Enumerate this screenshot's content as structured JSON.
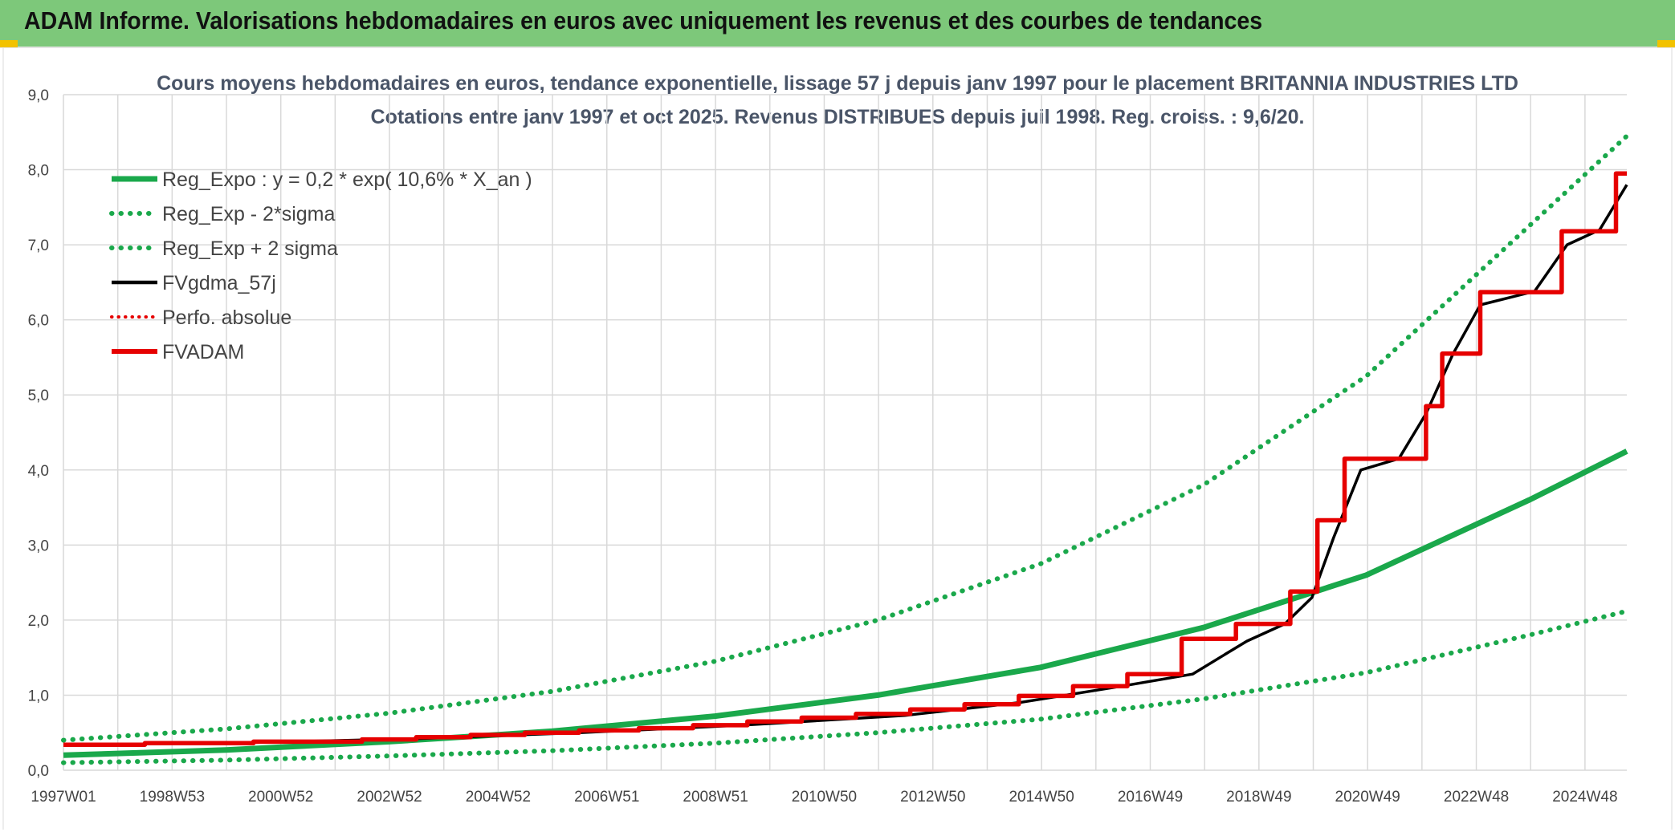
{
  "header": {
    "title": "ADAM Informe. Valorisations hebdomadaires en euros avec uniquement les revenus et des courbes de tendances"
  },
  "colors": {
    "header_bg": "#7dc87a",
    "accent_yellow": "#f2c200",
    "green": "#1aa84b",
    "red": "#e60000",
    "black": "#000000",
    "grid": "#d9d9d9"
  },
  "chart_data": {
    "type": "line",
    "title_line1": "Cours moyens hebdomadaires en euros, tendance exponentielle, lissage 57 j depuis janv 1997 pour le placement BRITANNIA INDUSTRIES LTD",
    "title_line2": "Cotations entre janv 1997 et oct 2025. Revenus DISTRIBUES depuis juil 1998. Reg. croiss. : 9,6/20.",
    "x_range": [
      1997.0,
      2025.8
    ],
    "ylim": [
      0,
      9
    ],
    "y_ticks": [
      "0,0",
      "1,0",
      "2,0",
      "3,0",
      "4,0",
      "5,0",
      "6,0",
      "7,0",
      "8,0",
      "9,0"
    ],
    "x_tick_labels": [
      "1997W01",
      "1998W53",
      "2000W52",
      "2002W52",
      "2004W52",
      "2006W51",
      "2008W51",
      "2010W50",
      "2012W50",
      "2014W50",
      "2016W49",
      "2018W49",
      "2020W49",
      "2022W48",
      "2024W48"
    ],
    "grid": true,
    "legend_position": "top-left",
    "legend": [
      {
        "label": "Reg_Expo : y = 0,2 * exp( 10,6% *  X_an )",
        "color": "#1aa84b",
        "style": "solid"
      },
      {
        "label": "Reg_Exp - 2*sigma",
        "color": "#1aa84b",
        "style": "dotted"
      },
      {
        "label": "Reg_Exp + 2 sigma",
        "color": "#1aa84b",
        "style": "dotted"
      },
      {
        "label": "FVgdma_57j",
        "color": "#000000",
        "style": "solid"
      },
      {
        "label": "Perfo. absolue",
        "color": "#e60000",
        "style": "dotted"
      },
      {
        "label": "FVADAM",
        "color": "#e60000",
        "style": "solid"
      }
    ],
    "series": [
      {
        "name": "Reg_Expo : y = 0,2 * exp( 10,6% *  X_an )",
        "x": [
          1997.0,
          2000.0,
          2003.0,
          2006.0,
          2009.0,
          2012.0,
          2015.0,
          2018.0,
          2021.0,
          2024.0,
          2025.8
        ],
        "values": [
          0.2,
          0.27,
          0.38,
          0.52,
          0.72,
          1.0,
          1.37,
          1.9,
          2.6,
          3.6,
          4.25
        ]
      },
      {
        "name": "Reg_Exp - 2*sigma",
        "x": [
          1997.0,
          2000.0,
          2003.0,
          2006.0,
          2009.0,
          2012.0,
          2015.0,
          2018.0,
          2021.0,
          2024.0,
          2025.8
        ],
        "values": [
          0.1,
          0.135,
          0.19,
          0.26,
          0.36,
          0.5,
          0.68,
          0.95,
          1.3,
          1.8,
          2.12
        ]
      },
      {
        "name": "Reg_Exp + 2 sigma",
        "x": [
          1997.0,
          2000.0,
          2003.0,
          2006.0,
          2009.0,
          2012.0,
          2015.0,
          2018.0,
          2021.0,
          2024.0,
          2025.8
        ],
        "values": [
          0.4,
          0.55,
          0.76,
          1.05,
          1.45,
          2.0,
          2.75,
          3.8,
          5.25,
          7.25,
          8.45
        ]
      },
      {
        "name": "FVgdma_57j",
        "x": [
          1997.0,
          2000.0,
          2003.5,
          2006.5,
          2009.5,
          2012.5,
          2014.6,
          2016.5,
          2017.8,
          2018.8,
          2019.5,
          2020.0,
          2020.4,
          2020.9,
          2021.6,
          2022.1,
          2022.6,
          2023.1,
          2024.1,
          2024.7,
          2025.3,
          2025.8
        ],
        "values": [
          0.34,
          0.36,
          0.42,
          0.5,
          0.6,
          0.73,
          0.9,
          1.12,
          1.28,
          1.72,
          1.95,
          2.3,
          3.1,
          4.0,
          4.15,
          4.75,
          5.55,
          6.2,
          6.38,
          7.0,
          7.2,
          7.8
        ]
      },
      {
        "name": "Perfo. absolue",
        "x": [],
        "values": []
      },
      {
        "name": "FVADAM",
        "x": [
          1997.0,
          1998.5,
          1998.5,
          2000.5,
          2000.5,
          2002.5,
          2002.5,
          2003.5,
          2003.5,
          2004.5,
          2004.5,
          2005.5,
          2005.5,
          2006.5,
          2006.5,
          2007.6,
          2007.6,
          2008.6,
          2008.6,
          2009.6,
          2009.6,
          2010.6,
          2010.6,
          2011.6,
          2011.6,
          2012.6,
          2012.6,
          2013.6,
          2013.6,
          2014.6,
          2014.6,
          2015.6,
          2015.6,
          2016.6,
          2016.6,
          2017.6,
          2017.6,
          2018.6,
          2018.6,
          2019.6,
          2019.6,
          2020.1,
          2020.1,
          2020.6,
          2020.6,
          2021.1,
          2021.1,
          2022.1,
          2022.1,
          2022.4,
          2022.4,
          2023.1,
          2023.1,
          2024.6,
          2024.6,
          2025.6,
          2025.6,
          2025.8
        ],
        "values": [
          0.34,
          0.34,
          0.36,
          0.36,
          0.38,
          0.38,
          0.41,
          0.41,
          0.44,
          0.44,
          0.47,
          0.47,
          0.5,
          0.5,
          0.53,
          0.53,
          0.56,
          0.56,
          0.6,
          0.6,
          0.65,
          0.65,
          0.7,
          0.7,
          0.75,
          0.75,
          0.81,
          0.81,
          0.88,
          0.88,
          0.99,
          0.99,
          1.12,
          1.12,
          1.28,
          1.28,
          1.75,
          1.75,
          1.95,
          1.95,
          2.38,
          2.38,
          3.33,
          3.33,
          4.15,
          4.15,
          4.15,
          4.15,
          4.85,
          4.85,
          5.55,
          5.55,
          6.37,
          6.37,
          7.18,
          7.18,
          7.95,
          7.95
        ]
      }
    ]
  }
}
